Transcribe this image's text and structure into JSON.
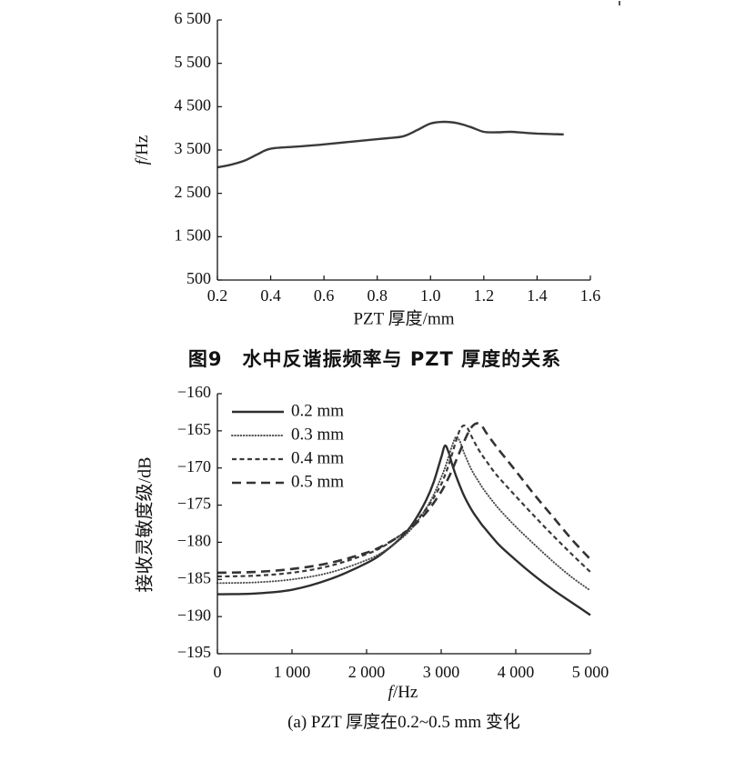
{
  "figure_caption": {
    "label": "图9",
    "title": "水中反谐振频率与 PZT 厚度的关系"
  },
  "chart_data": [
    {
      "type": "line",
      "title": "",
      "xlabel": "PZT 厚度/mm",
      "ylabel": {
        "var": "f",
        "unit": "/Hz"
      },
      "xlim": [
        0.2,
        1.6
      ],
      "ylim": [
        500,
        6500
      ],
      "grid": false,
      "x_ticks": {
        "values": [
          0.2,
          0.4,
          0.6,
          0.8,
          1.0,
          1.2,
          1.4,
          1.6
        ],
        "labels": [
          "0.2",
          "0.4",
          "0.6",
          "0.8",
          "1.0",
          "1.2",
          "1.4",
          "1.6"
        ]
      },
      "y_ticks": {
        "values": [
          500,
          1500,
          2500,
          3500,
          4500,
          5500,
          6500
        ],
        "labels": [
          "500",
          "1 500",
          "2 500",
          "3 500",
          "4 500",
          "5 500",
          "6 500"
        ]
      },
      "x": [
        0.2,
        0.25,
        0.3,
        0.35,
        0.4,
        0.5,
        0.6,
        0.7,
        0.8,
        0.85,
        0.9,
        0.95,
        1.0,
        1.05,
        1.1,
        1.15,
        1.2,
        1.25,
        1.3,
        1.35,
        1.4,
        1.45,
        1.5
      ],
      "series": [
        {
          "style": "solid",
          "color": "#3a3a3a",
          "y": [
            3100,
            3160,
            3250,
            3400,
            3530,
            3580,
            3630,
            3690,
            3750,
            3780,
            3820,
            3960,
            4110,
            4150,
            4120,
            4030,
            3920,
            3910,
            3920,
            3900,
            3880,
            3870,
            3860
          ]
        }
      ]
    },
    {
      "type": "line",
      "title": "",
      "caption": "(a) PZT 厚度在0.2~0.5 mm 变化",
      "xlabel": {
        "var": "f",
        "unit": "/Hz"
      },
      "ylabel": "接收灵敏度级/dB",
      "xlim": [
        0,
        5000
      ],
      "ylim": [
        -195,
        -160
      ],
      "grid": false,
      "legend": "top-left",
      "x_ticks": {
        "values": [
          0,
          1000,
          2000,
          3000,
          4000,
          5000
        ],
        "labels": [
          "0",
          "1 000",
          "2 000",
          "3 000",
          "4 000",
          "5 000"
        ]
      },
      "y_ticks": {
        "values": [
          -195,
          -190,
          -185,
          -180,
          -175,
          -170,
          -165,
          -160
        ],
        "labels": [
          "−195",
          "−190",
          "−185",
          "−180",
          "−175",
          "−170",
          "−165",
          "−160"
        ]
      },
      "x": [
        0,
        500,
        1000,
        1500,
        2000,
        2250,
        2500,
        2650,
        2800,
        2900,
        3000,
        3050,
        3100,
        3150,
        3200,
        3250,
        3300,
        3350,
        3400,
        3450,
        3500,
        3550,
        3600,
        3700,
        3800,
        4000,
        4250,
        4500,
        4750,
        5000
      ],
      "series": [
        {
          "name": "0.2 mm",
          "style": "solid",
          "color": "#2e2e2e",
          "y": [
            -187.0,
            -186.9,
            -186.4,
            -185.0,
            -182.8,
            -181.2,
            -179.0,
            -177.0,
            -174.3,
            -171.9,
            -168.6,
            -167.0,
            -167.9,
            -169.6,
            -171.1,
            -172.4,
            -173.6,
            -174.6,
            -175.5,
            -176.3,
            -177.0,
            -177.7,
            -178.3,
            -179.5,
            -180.6,
            -182.4,
            -184.5,
            -186.4,
            -188.1,
            -189.8
          ]
        },
        {
          "name": "0.3 mm",
          "style": "dotted",
          "color": "#4a4a4a",
          "y": [
            -185.5,
            -185.4,
            -185.0,
            -184.1,
            -182.4,
            -181.1,
            -179.2,
            -177.6,
            -175.4,
            -173.6,
            -171.3,
            -170.0,
            -168.5,
            -166.9,
            -165.8,
            -166.4,
            -167.8,
            -169.0,
            -170.1,
            -171.0,
            -171.8,
            -172.6,
            -173.3,
            -174.6,
            -175.8,
            -177.9,
            -180.3,
            -182.6,
            -184.7,
            -186.5
          ]
        },
        {
          "name": "0.4 mm",
          "style": "dashed",
          "color": "#3a3a3a",
          "y": [
            -184.6,
            -184.5,
            -184.1,
            -183.2,
            -181.6,
            -180.4,
            -178.7,
            -177.3,
            -175.5,
            -174.0,
            -172.2,
            -171.0,
            -169.6,
            -168.0,
            -166.3,
            -164.9,
            -164.3,
            -164.6,
            -165.6,
            -166.6,
            -167.5,
            -168.3,
            -169.0,
            -170.4,
            -171.6,
            -173.8,
            -176.5,
            -179.1,
            -181.6,
            -184.0
          ]
        },
        {
          "name": "0.5 mm",
          "style": "longdash",
          "color": "#333333",
          "y": [
            -184.1,
            -184.0,
            -183.6,
            -182.8,
            -181.4,
            -180.3,
            -178.8,
            -177.6,
            -176.0,
            -174.7,
            -173.2,
            -172.3,
            -171.3,
            -170.2,
            -169.0,
            -167.8,
            -166.6,
            -165.5,
            -164.6,
            -164.1,
            -164.0,
            -164.4,
            -165.2,
            -166.6,
            -167.9,
            -170.4,
            -173.6,
            -176.6,
            -179.6,
            -182.3
          ]
        }
      ]
    }
  ]
}
